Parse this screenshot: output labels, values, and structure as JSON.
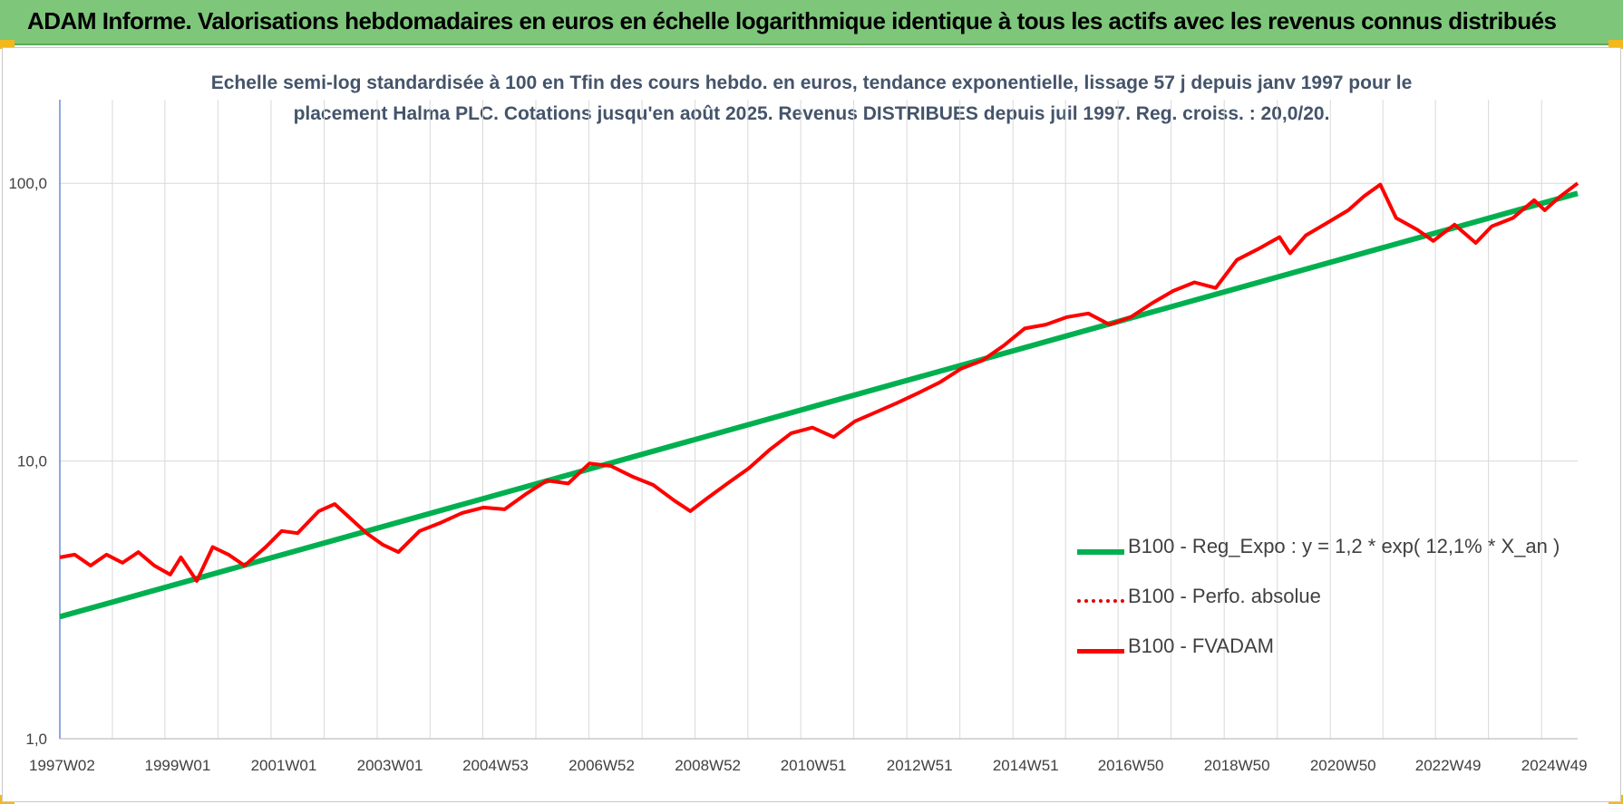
{
  "header": {
    "title": "ADAM Informe. Valorisations hebdomadaires en euros en échelle logarithmique identique à tous les actifs avec les revenus connus distribués"
  },
  "colors": {
    "banner": "#7dc67a",
    "corner_accent": "#f2b81c",
    "trend": "#00b050",
    "perf_absolue": "#e00000",
    "fvadam": "#ff0000"
  },
  "chart_data": {
    "type": "line",
    "title_line1": "Echelle semi-log standardisée à 100 en Tfin des cours hebdo. en euros, tendance exponentielle, lissage 57 j depuis janv 1997 pour le",
    "title_line2": "placement Halma PLC. Cotations jusqu'en août 2025. Revenus DISTRIBUES depuis juil 1997. Reg. croiss. : 20,0/20.",
    "xlabel": "",
    "ylabel": "",
    "y_scale": "log",
    "ylim": [
      1,
      200
    ],
    "xlim": [
      1997.02,
      2025.62
    ],
    "grid": "vertical-and-horizontal",
    "legend_position": "right",
    "y_ticks": [
      {
        "value": 1,
        "label": "1,0"
      },
      {
        "value": 10,
        "label": "10,0"
      },
      {
        "value": 100,
        "label": "100,0"
      }
    ],
    "x_ticks": [
      {
        "value": 1997.02,
        "label": "1997W02"
      },
      {
        "value": 1999.0,
        "label": "1999W01"
      },
      {
        "value": 2001.0,
        "label": "2001W01"
      },
      {
        "value": 2003.0,
        "label": "2003W01"
      },
      {
        "value": 2004.99,
        "label": "2004W53"
      },
      {
        "value": 2006.99,
        "label": "2006W52"
      },
      {
        "value": 2008.99,
        "label": "2008W52"
      },
      {
        "value": 2010.98,
        "label": "2010W51"
      },
      {
        "value": 2012.98,
        "label": "2012W51"
      },
      {
        "value": 2014.98,
        "label": "2014W51"
      },
      {
        "value": 2016.96,
        "label": "2016W50"
      },
      {
        "value": 2018.96,
        "label": "2018W50"
      },
      {
        "value": 2020.96,
        "label": "2020W50"
      },
      {
        "value": 2022.94,
        "label": "2022W49"
      },
      {
        "value": 2024.94,
        "label": "2024W49"
      }
    ],
    "series": [
      {
        "name": "B100 - Reg_Expo : y = 1,2 * exp( 12,1% *  X_an )",
        "style": "solid-thick",
        "x": [
          1997.02,
          2025.62
        ],
        "y": [
          2.75,
          92.0
        ]
      },
      {
        "name": "B100 - Perfo. absolue",
        "style": "dotted",
        "x": [
          1997.02,
          1997.3,
          1997.6,
          1997.9,
          1998.2,
          1998.5,
          1998.8,
          1999.1,
          1999.3,
          1999.6,
          1999.9,
          2000.2,
          2000.5,
          2000.9,
          2001.2,
          2001.5,
          2001.9,
          2002.2,
          2002.5,
          2002.8,
          2003.1,
          2003.4,
          2003.8,
          2004.2,
          2004.6,
          2005.0,
          2005.4,
          2005.8,
          2006.2,
          2006.6,
          2007.0,
          2007.4,
          2007.8,
          2008.2,
          2008.6,
          2008.9,
          2009.2,
          2009.6,
          2010.0,
          2010.4,
          2010.8,
          2011.2,
          2011.6,
          2012.0,
          2012.4,
          2012.8,
          2013.2,
          2013.6,
          2014.0,
          2014.4,
          2014.8,
          2015.2,
          2015.6,
          2016.0,
          2016.4,
          2016.8,
          2017.2,
          2017.6,
          2018.0,
          2018.4,
          2018.8,
          2019.2,
          2019.6,
          2020.0,
          2020.2,
          2020.5,
          2020.9,
          2021.3,
          2021.6,
          2021.9,
          2022.2,
          2022.6,
          2022.9,
          2023.3,
          2023.7,
          2024.0,
          2024.4,
          2024.8,
          2025.0,
          2025.3,
          2025.62
        ],
        "y": [
          4.5,
          4.6,
          4.2,
          4.6,
          4.3,
          4.7,
          4.2,
          3.9,
          4.5,
          3.7,
          4.9,
          4.6,
          4.2,
          4.9,
          5.6,
          5.5,
          6.6,
          7.0,
          6.2,
          5.5,
          5.0,
          4.7,
          5.6,
          6.0,
          6.5,
          6.8,
          6.7,
          7.6,
          8.5,
          8.3,
          9.8,
          9.6,
          8.8,
          8.2,
          7.2,
          6.6,
          7.3,
          8.3,
          9.4,
          11.0,
          12.6,
          13.2,
          12.2,
          13.9,
          15.0,
          16.2,
          17.6,
          19.2,
          21.5,
          23.0,
          26.0,
          30.0,
          31.0,
          33.0,
          34.0,
          31.0,
          33.0,
          37.0,
          41.0,
          44.0,
          42.0,
          53.0,
          58.0,
          64.0,
          56.0,
          65.0,
          72.0,
          80.0,
          90.0,
          99.0,
          75.0,
          68.0,
          62.0,
          71.0,
          61.0,
          70.0,
          75.0,
          87.0,
          80.0,
          90.0,
          100.0
        ]
      },
      {
        "name": "B100 - FVADAM",
        "style": "solid",
        "x": [
          1997.02,
          1997.3,
          1997.6,
          1997.9,
          1998.2,
          1998.5,
          1998.8,
          1999.1,
          1999.3,
          1999.6,
          1999.9,
          2000.2,
          2000.5,
          2000.9,
          2001.2,
          2001.5,
          2001.9,
          2002.2,
          2002.5,
          2002.8,
          2003.1,
          2003.4,
          2003.8,
          2004.2,
          2004.6,
          2005.0,
          2005.4,
          2005.8,
          2006.2,
          2006.6,
          2007.0,
          2007.4,
          2007.8,
          2008.2,
          2008.6,
          2008.9,
          2009.2,
          2009.6,
          2010.0,
          2010.4,
          2010.8,
          2011.2,
          2011.6,
          2012.0,
          2012.4,
          2012.8,
          2013.2,
          2013.6,
          2014.0,
          2014.4,
          2014.8,
          2015.2,
          2015.6,
          2016.0,
          2016.4,
          2016.8,
          2017.2,
          2017.6,
          2018.0,
          2018.4,
          2018.8,
          2019.2,
          2019.6,
          2020.0,
          2020.2,
          2020.5,
          2020.9,
          2021.3,
          2021.6,
          2021.9,
          2022.2,
          2022.6,
          2022.9,
          2023.3,
          2023.7,
          2024.0,
          2024.4,
          2024.8,
          2025.0,
          2025.3,
          2025.62
        ],
        "y": [
          4.5,
          4.6,
          4.2,
          4.6,
          4.3,
          4.7,
          4.2,
          3.9,
          4.5,
          3.7,
          4.9,
          4.6,
          4.2,
          4.9,
          5.6,
          5.5,
          6.6,
          7.0,
          6.2,
          5.5,
          5.0,
          4.7,
          5.6,
          6.0,
          6.5,
          6.8,
          6.7,
          7.6,
          8.5,
          8.3,
          9.8,
          9.6,
          8.8,
          8.2,
          7.2,
          6.6,
          7.3,
          8.3,
          9.4,
          11.0,
          12.6,
          13.2,
          12.2,
          13.9,
          15.0,
          16.2,
          17.6,
          19.2,
          21.5,
          23.0,
          26.0,
          30.0,
          31.0,
          33.0,
          34.0,
          31.0,
          33.0,
          37.0,
          41.0,
          44.0,
          42.0,
          53.0,
          58.0,
          64.0,
          56.0,
          65.0,
          72.0,
          80.0,
          90.0,
          99.0,
          75.0,
          68.0,
          62.0,
          71.0,
          61.0,
          70.0,
          75.0,
          87.0,
          80.0,
          90.0,
          100.0
        ]
      }
    ]
  }
}
